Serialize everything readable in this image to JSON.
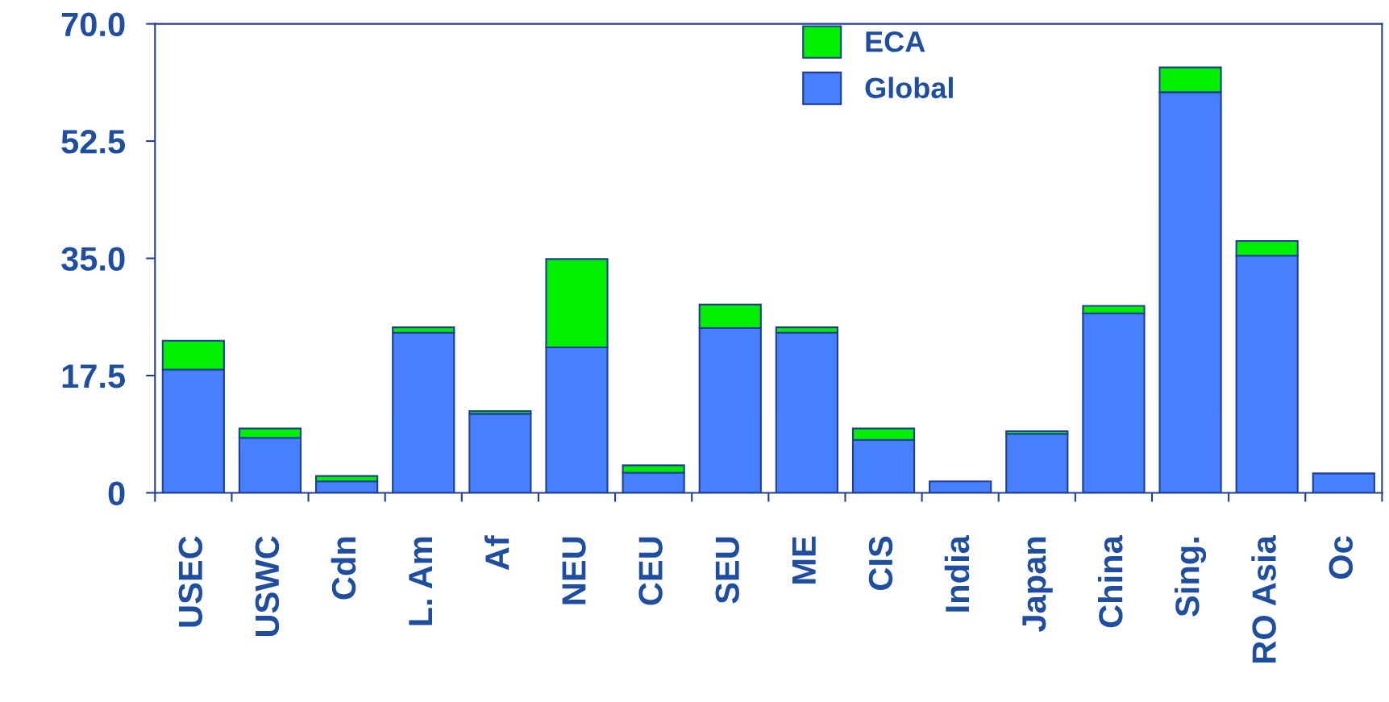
{
  "chart_data": {
    "type": "bar",
    "stacked": true,
    "categories": [
      "USEC",
      "USWC",
      "Cdn",
      "L. Am",
      "Af",
      "NEU",
      "CEU",
      "SEU",
      "ME",
      "CIS",
      "India",
      "Japan",
      "China",
      "Sing.",
      "RO Asia",
      "Oc"
    ],
    "series": [
      {
        "name": "Global",
        "color": "#4680ff",
        "values": [
          18.4,
          8.2,
          1.7,
          23.9,
          11.8,
          21.7,
          3.0,
          24.6,
          23.9,
          7.9,
          1.7,
          8.8,
          26.8,
          59.8,
          35.4,
          2.9
        ]
      },
      {
        "name": "ECA",
        "color": "#00f000",
        "values": [
          4.3,
          1.4,
          0.8,
          0.8,
          0.4,
          13.2,
          1.1,
          3.5,
          0.8,
          1.7,
          null,
          0.4,
          1.1,
          3.7,
          2.2,
          null
        ]
      }
    ],
    "ylim": [
      0,
      70
    ],
    "yticks": [
      {
        "value": 0,
        "label": "0"
      },
      {
        "value": 17.5,
        "label": "17.5"
      },
      {
        "value": 35,
        "label": "35.0"
      },
      {
        "value": 52.5,
        "label": "52.5"
      },
      {
        "value": 70,
        "label": "70.0"
      }
    ],
    "legend": "top",
    "grid": false
  }
}
